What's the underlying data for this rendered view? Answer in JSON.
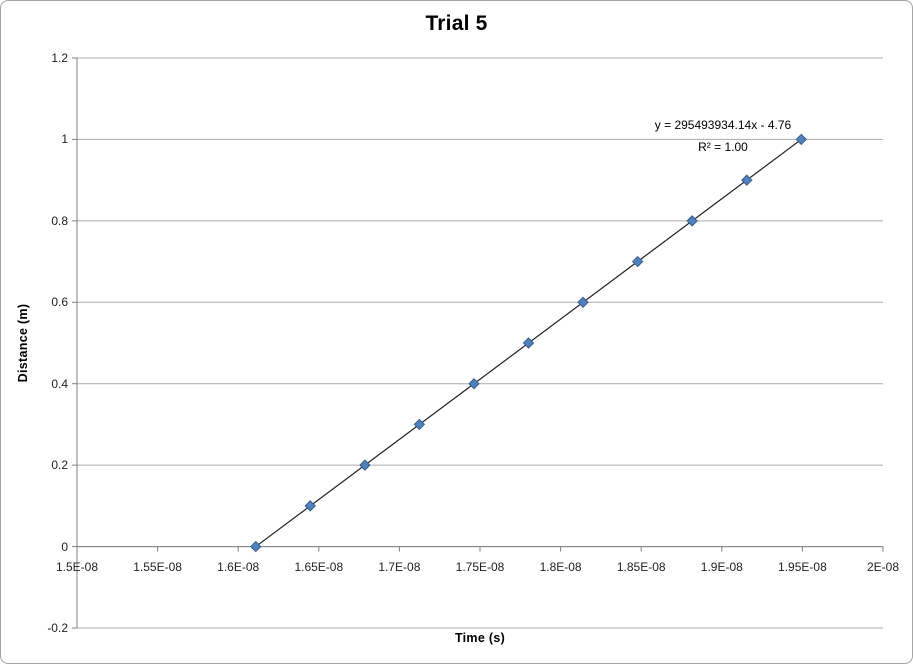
{
  "chart_data": {
    "type": "scatter",
    "title": "Trial 5",
    "xlabel": "Time (s)",
    "ylabel": "Distance (m)",
    "xlim": [
      1.5e-08,
      2e-08
    ],
    "ylim": [
      -0.2,
      1.2
    ],
    "x_ticks": [
      1.5e-08,
      1.55e-08,
      1.6e-08,
      1.65e-08,
      1.7e-08,
      1.75e-08,
      1.8e-08,
      1.85e-08,
      1.9e-08,
      1.95e-08,
      2e-08
    ],
    "x_tick_labels": [
      "1.5E-08",
      "1.55E-08",
      "1.6E-08",
      "1.65E-08",
      "1.7E-08",
      "1.75E-08",
      "1.8E-08",
      "1.85E-08",
      "1.9E-08",
      "1.95E-08",
      "2E-08"
    ],
    "y_ticks": [
      1.2,
      1.0,
      0.8,
      0.6,
      0.4,
      0.2,
      0.0,
      -0.2
    ],
    "y_tick_labels": [
      "1.2",
      "1",
      "0.8",
      "0.6",
      "0.4",
      "0.2",
      "0",
      "-0.2"
    ],
    "grid": "horizontal-only",
    "legend": "none",
    "series": [
      {
        "name": "Trial 5",
        "marker": {
          "shape": "diamond",
          "size": 10
        },
        "points": [
          {
            "x": 1.6109e-08,
            "y": 0.0
          },
          {
            "x": 1.6447e-08,
            "y": 0.1
          },
          {
            "x": 1.6786e-08,
            "y": 0.2
          },
          {
            "x": 1.7124e-08,
            "y": 0.3
          },
          {
            "x": 1.7463e-08,
            "y": 0.4
          },
          {
            "x": 1.7801e-08,
            "y": 0.5
          },
          {
            "x": 1.8139e-08,
            "y": 0.6
          },
          {
            "x": 1.8478e-08,
            "y": 0.7
          },
          {
            "x": 1.8816e-08,
            "y": 0.8
          },
          {
            "x": 1.9155e-08,
            "y": 0.9
          },
          {
            "x": 1.9493e-08,
            "y": 1.0
          }
        ]
      }
    ],
    "trendline": {
      "type": "linear",
      "slope": 295493934.14,
      "intercept": -4.76,
      "equation": "y = 295493934.14x - 4.76",
      "r_squared": 1.0,
      "r_squared_label": "R² = 1.00"
    },
    "colors": {
      "marker_fill": "#4F81BD",
      "marker_stroke": "#385D8A",
      "trendline": "#1F1F1F",
      "gridline": "#ABABAB",
      "axis": "#808080",
      "text": "#1F1F1F",
      "chart_border": "#A6A6A6",
      "background": "#FFFFFF"
    }
  }
}
